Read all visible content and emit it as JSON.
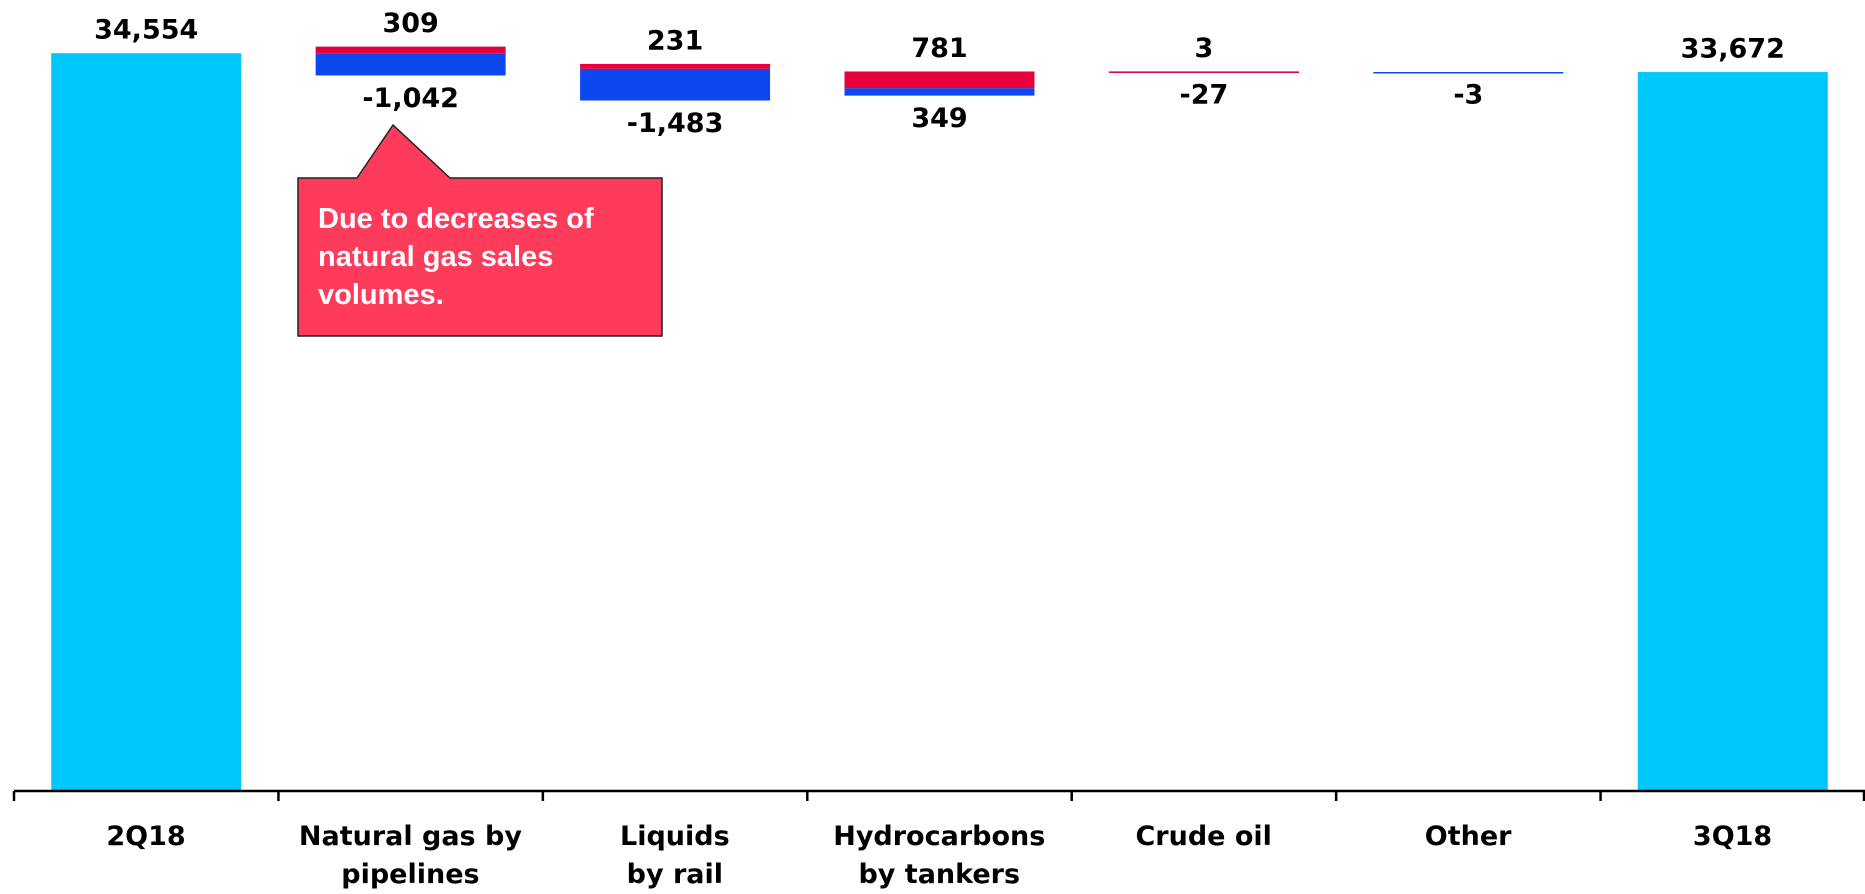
{
  "chart_data": {
    "type": "waterfall",
    "categories": [
      "2Q18",
      "Natural gas by\npipelines",
      "Liquids\nby rail",
      "Hydrocarbons\nby tankers",
      "Crude oil",
      "Other",
      "3Q18"
    ],
    "totals": {
      "color": "#00c8fa",
      "values": [
        34554,
        null,
        null,
        null,
        null,
        null,
        33672
      ],
      "value_labels": [
        "34,554",
        null,
        null,
        null,
        null,
        null,
        "33,672"
      ]
    },
    "series": [
      {
        "color": "#0d47f0",
        "values": [
          null,
          -1042,
          -1483,
          349,
          -27,
          -3,
          null
        ],
        "value_labels": [
          null,
          "-1,042",
          "-1,483",
          "349",
          "-27",
          "-3",
          null
        ]
      },
      {
        "color": "#e8003c",
        "values": [
          null,
          309,
          231,
          781,
          3,
          null,
          null
        ],
        "value_labels": [
          null,
          "309",
          "231",
          "781",
          "3",
          null,
          null
        ]
      }
    ],
    "ylim": [
      0,
      37000
    ],
    "annotation": "Due to decreases of natural gas sales volumes."
  }
}
